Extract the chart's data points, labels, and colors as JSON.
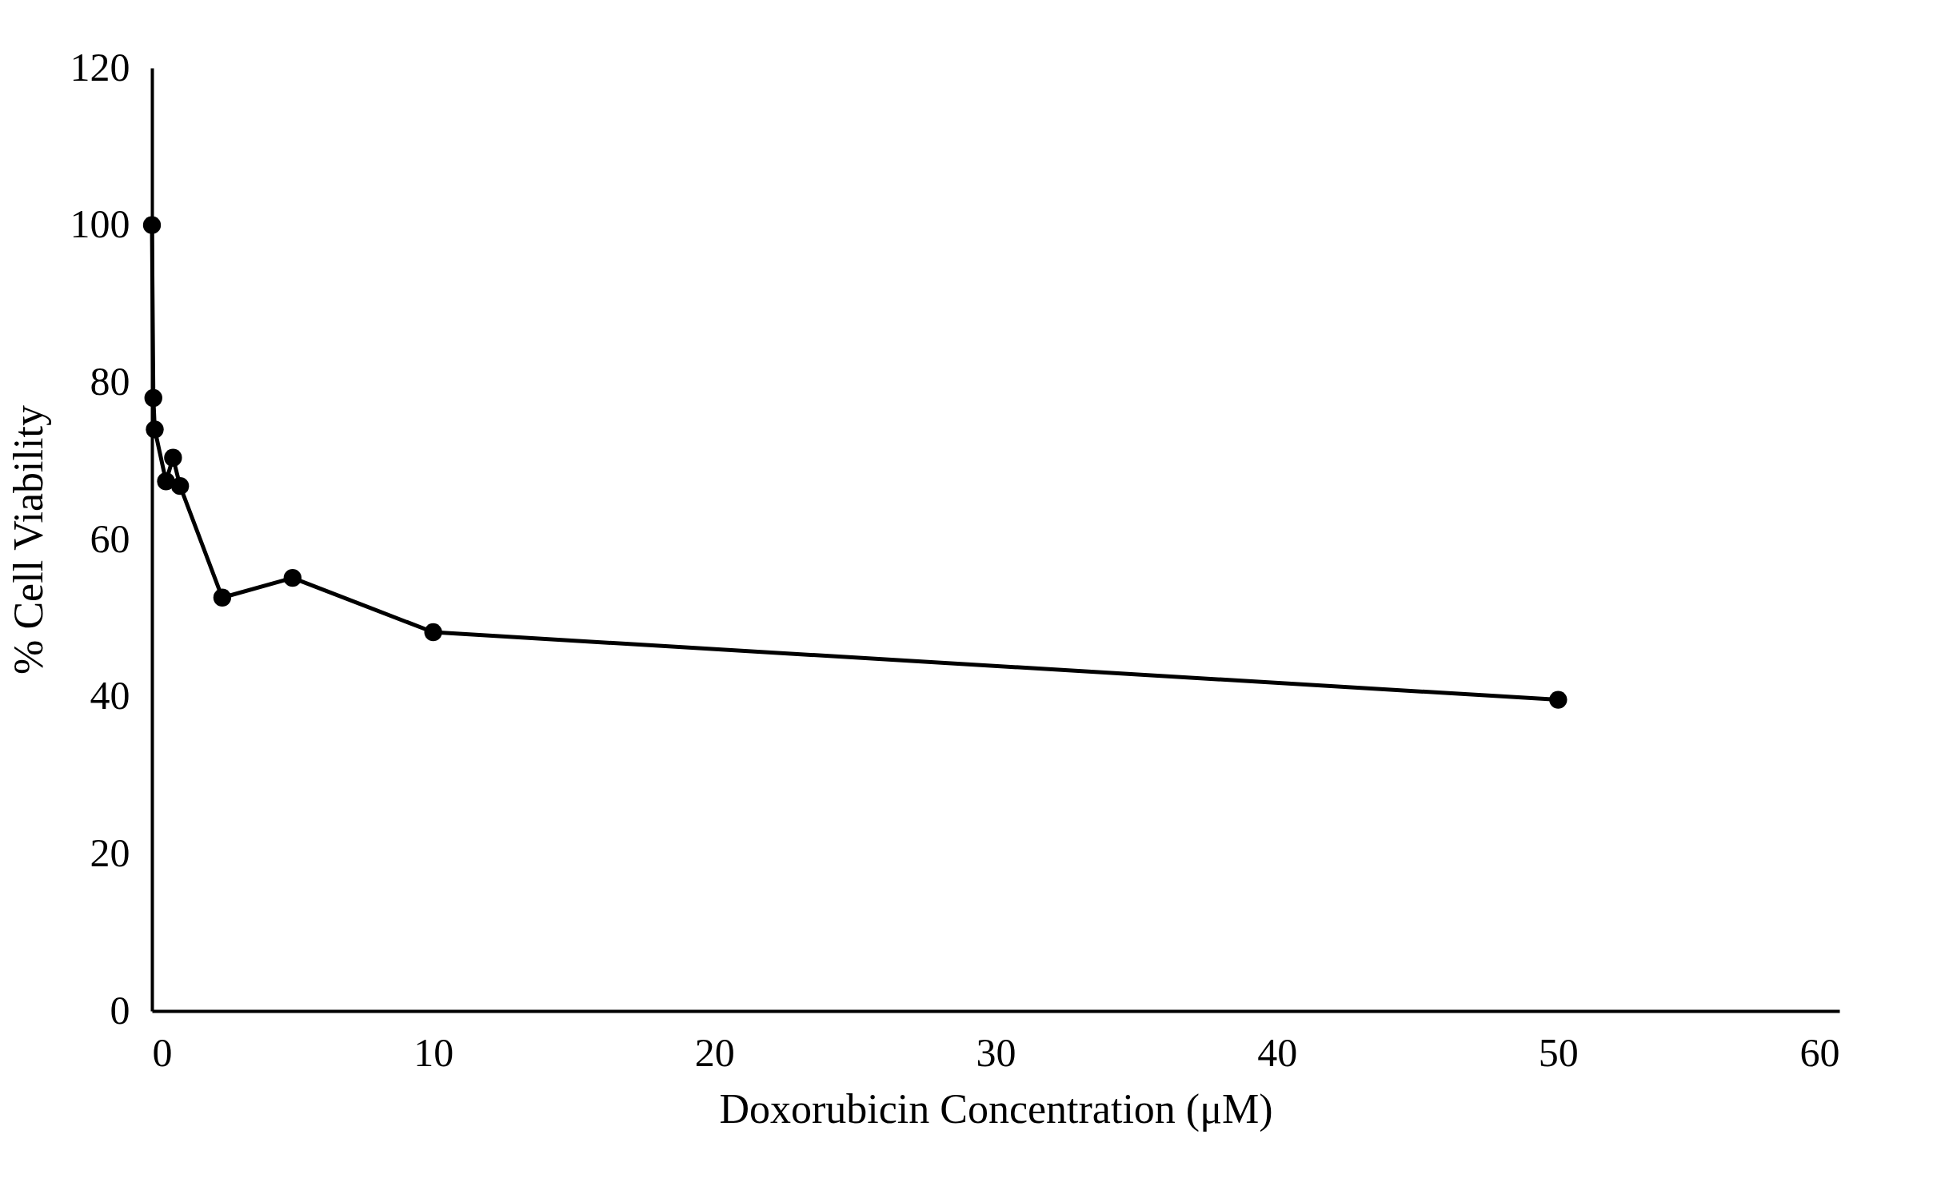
{
  "chart_data": {
    "type": "line",
    "xlabel": "Doxorubicin Concentration (μM)",
    "ylabel": "% Cell Viability",
    "x": [
      0,
      0.05,
      0.1,
      0.5,
      0.75,
      1,
      2.5,
      5,
      10,
      50
    ],
    "series": [
      {
        "color": "#000000",
        "values": [
          100,
          78,
          74,
          67.4,
          70.4,
          66.8,
          52.6,
          55.1,
          48.2,
          39.6
        ]
      }
    ],
    "xlim": [
      0,
      60
    ],
    "xticks": [
      0,
      10,
      20,
      30,
      40,
      50,
      60
    ],
    "ylim": [
      0,
      120
    ],
    "yticks": [
      0,
      20,
      40,
      60,
      80,
      100,
      120
    ],
    "grid": false,
    "marker": "circle",
    "line_style": "solid"
  }
}
